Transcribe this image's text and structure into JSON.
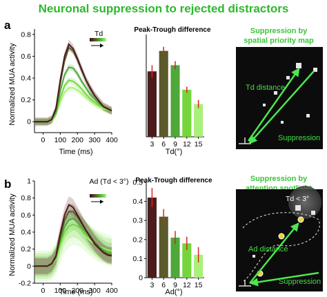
{
  "title": "Neuronal suppression to rejected distractors",
  "panel_a": {
    "letter": "a",
    "schematic": {
      "heading_line1": "Suppression by",
      "heading_line2": "spatial priority map",
      "label_distance": "Td distance",
      "label_suppression": "Suppression"
    }
  },
  "panel_b": {
    "letter": "b",
    "schematic": {
      "heading_line1": "Suppression by",
      "heading_line2": "attention spotlight",
      "label_circle": "Td < 3°",
      "label_distance": "Ad distance",
      "label_suppression": "Suppression"
    }
  },
  "colors": {
    "title": "#2db82d",
    "heading": "#3cc43c",
    "schematic_bg": "#0c0c0c",
    "schematic_arrow": "#4ee64e",
    "gradient": [
      "#4a1c1c",
      "#5a5a2a",
      "#4fa83a",
      "#74d63a",
      "#a9f07a"
    ],
    "error_bar": "#e02020"
  },
  "chart_data": [
    {
      "type": "line",
      "panel": "a",
      "xlabel": "Time (ms)",
      "ylabel": "Normalized MUA activity",
      "xlim": [
        -50,
        400
      ],
      "ylim": [
        -0.1,
        0.85
      ],
      "xticks": [
        0,
        100,
        200,
        300,
        400
      ],
      "yticks": [
        0,
        0.2,
        0.4,
        0.6,
        0.8
      ],
      "ytick_labels": [
        "0",
        "0.2",
        "0.4",
        "0.6",
        "0.8"
      ],
      "legend_label": "Td",
      "x": [
        -50,
        0,
        25,
        50,
        75,
        100,
        125,
        150,
        175,
        200,
        225,
        250,
        275,
        300,
        325,
        350,
        375,
        400
      ],
      "series": [
        {
          "values": [
            0.0,
            0.0,
            0.0,
            0.02,
            0.12,
            0.38,
            0.6,
            0.71,
            0.67,
            0.58,
            0.48,
            0.38,
            0.31,
            0.24,
            0.19,
            0.14,
            0.12,
            0.1
          ],
          "err": 0.04
        },
        {
          "values": [
            0.0,
            0.0,
            0.0,
            0.02,
            0.11,
            0.35,
            0.56,
            0.68,
            0.65,
            0.57,
            0.47,
            0.38,
            0.3,
            0.24,
            0.19,
            0.14,
            0.12,
            0.1
          ],
          "err": 0.03
        },
        {
          "values": [
            0.0,
            0.0,
            0.0,
            0.02,
            0.09,
            0.28,
            0.43,
            0.5,
            0.49,
            0.44,
            0.37,
            0.31,
            0.25,
            0.21,
            0.17,
            0.14,
            0.12,
            0.1
          ],
          "err": 0.03
        },
        {
          "values": [
            0.0,
            0.0,
            0.0,
            0.01,
            0.07,
            0.22,
            0.33,
            0.38,
            0.37,
            0.34,
            0.3,
            0.25,
            0.21,
            0.18,
            0.15,
            0.13,
            0.11,
            0.1
          ],
          "err": 0.03
        },
        {
          "values": [
            0.0,
            0.0,
            0.0,
            0.01,
            0.06,
            0.18,
            0.27,
            0.31,
            0.31,
            0.29,
            0.26,
            0.22,
            0.19,
            0.16,
            0.14,
            0.12,
            0.11,
            0.1
          ],
          "err": 0.03
        }
      ]
    },
    {
      "type": "bar",
      "panel": "a",
      "title": "Peak-Trough difference",
      "xlabel": "Td(°)",
      "categories": [
        "3",
        "6",
        "9",
        "12",
        "15"
      ],
      "values": [
        0.32,
        0.42,
        0.35,
        0.23,
        0.16
      ],
      "err": [
        0.03,
        0.02,
        0.02,
        0.015,
        0.02
      ],
      "ylim": [
        0,
        0.5
      ]
    },
    {
      "type": "line",
      "panel": "b",
      "xlabel": "Time (ms)",
      "ylabel": "Normalized MUA activity",
      "xlim": [
        -50,
        400
      ],
      "ylim": [
        -0.2,
        1.0
      ],
      "xticks": [
        0,
        100,
        200,
        300,
        400
      ],
      "yticks": [
        -0.2,
        0,
        0.2,
        0.4,
        0.6,
        0.8,
        1.0
      ],
      "ytick_labels": [
        "-0.2",
        "0",
        "0.2",
        "0.4",
        "0.6",
        "0.8",
        "1"
      ],
      "legend_label": "Ad (Td < 3°)",
      "x": [
        -50,
        0,
        25,
        50,
        75,
        100,
        125,
        150,
        175,
        200,
        225,
        250,
        275,
        300,
        325,
        350,
        375,
        400
      ],
      "series": [
        {
          "values": [
            0.0,
            0.0,
            0.0,
            0.03,
            0.12,
            0.38,
            0.6,
            0.72,
            0.69,
            0.6,
            0.51,
            0.42,
            0.34,
            0.26,
            0.21,
            0.16,
            0.13,
            0.12
          ],
          "err": 0.1
        },
        {
          "values": [
            0.0,
            0.0,
            0.0,
            0.03,
            0.11,
            0.34,
            0.54,
            0.64,
            0.64,
            0.58,
            0.5,
            0.42,
            0.35,
            0.28,
            0.22,
            0.17,
            0.14,
            0.13
          ],
          "err": 0.09
        },
        {
          "values": [
            0.0,
            0.0,
            0.0,
            0.02,
            0.1,
            0.3,
            0.46,
            0.54,
            0.56,
            0.52,
            0.46,
            0.4,
            0.33,
            0.28,
            0.23,
            0.19,
            0.16,
            0.15
          ],
          "err": 0.12
        },
        {
          "values": [
            0.0,
            0.0,
            0.0,
            0.02,
            0.09,
            0.26,
            0.4,
            0.47,
            0.49,
            0.47,
            0.43,
            0.37,
            0.32,
            0.27,
            0.23,
            0.2,
            0.18,
            0.17
          ],
          "err": 0.15
        },
        {
          "values": [
            0.0,
            0.0,
            0.0,
            0.02,
            0.08,
            0.22,
            0.34,
            0.4,
            0.43,
            0.42,
            0.39,
            0.34,
            0.3,
            0.26,
            0.23,
            0.21,
            0.19,
            0.18
          ],
          "err": 0.18
        }
      ]
    },
    {
      "type": "bar",
      "panel": "b",
      "title": "Peak-Trough difference",
      "xlabel": "Ad(°)",
      "categories": [
        "3",
        "6",
        "9",
        "12",
        "15"
      ],
      "values": [
        0.42,
        0.32,
        0.21,
        0.18,
        0.12
      ],
      "err": [
        0.05,
        0.04,
        0.035,
        0.035,
        0.04
      ],
      "ylim": [
        0,
        0.5
      ],
      "yticks": [
        0,
        0.1,
        0.2,
        0.3,
        0.4,
        0.5
      ],
      "ytick_labels": [
        "0",
        "0.1",
        "0.2",
        "0.3",
        "0.4",
        "0.5"
      ]
    }
  ]
}
